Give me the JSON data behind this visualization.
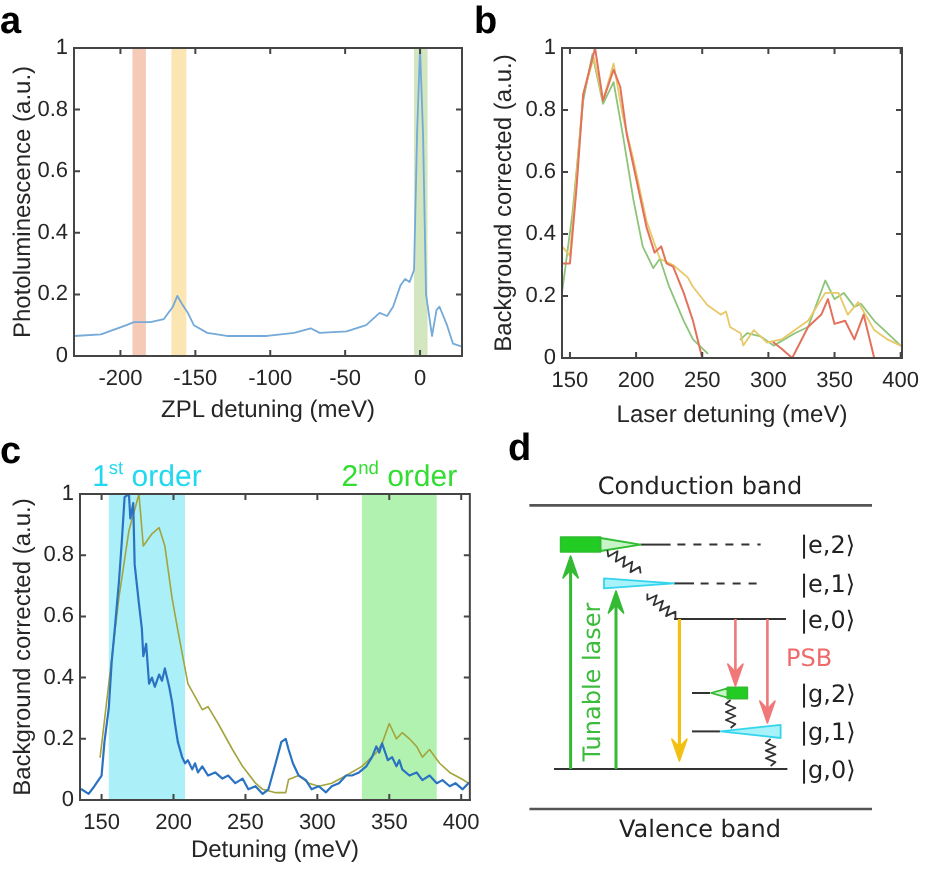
{
  "chart_data": [
    {
      "type": "line",
      "title": "a",
      "xlabel": "ZPL detuning (meV)",
      "ylabel": "Photoluminescence (a.u.)",
      "x": [
        -231,
        -213,
        -196,
        -191,
        -180,
        -171,
        -165,
        -162,
        -159,
        -155,
        -151,
        -142,
        -129,
        -102,
        -84,
        -73,
        -67,
        -49,
        -36,
        -27,
        -22,
        -18,
        -13,
        -10,
        -7,
        -4,
        -2,
        0,
        2,
        4,
        8,
        11,
        13,
        18,
        22,
        28
      ],
      "series": [
        {
          "color": "#74a9d8",
          "values": [
            0.065,
            0.07,
            0.1,
            0.11,
            0.11,
            0.12,
            0.16,
            0.195,
            0.17,
            0.14,
            0.1,
            0.075,
            0.065,
            0.065,
            0.075,
            0.09,
            0.075,
            0.08,
            0.1,
            0.14,
            0.13,
            0.16,
            0.23,
            0.25,
            0.24,
            0.28,
            0.72,
            1,
            0.72,
            0.2,
            0.065,
            0.15,
            0.16,
            0.1,
            0.04,
            0.03
          ]
        }
      ],
      "xlim": [
        -231,
        28
      ],
      "xticks": [
        -200,
        -150,
        -100,
        -50,
        0
      ],
      "ylim": [
        0,
        1
      ],
      "yticks": [
        0,
        0.2,
        0.4,
        0.6,
        0.8,
        1
      ],
      "bands": [
        {
          "axis": "x",
          "from": -192,
          "to": -183,
          "color": "#e57644"
        },
        {
          "axis": "x",
          "from": -166,
          "to": -156,
          "color": "#f5bb37"
        },
        {
          "axis": "x",
          "from": -4,
          "to": 5,
          "color": "#89bd57"
        }
      ]
    },
    {
      "type": "line",
      "title": "b",
      "xlabel": "Laser detuning (meV)",
      "ylabel": "Background corrected (a.u.)",
      "series": [
        {
          "color": "#e2725b",
          "x": [
            144,
            150,
            155,
            160,
            169,
            175,
            183,
            188,
            193,
            198,
            208,
            214,
            219,
            223,
            228,
            236,
            243,
            250,
            280,
            304,
            310,
            318,
            330,
            340,
            345,
            350,
            358,
            365,
            372,
            380
          ],
          "values": [
            0.305,
            0.305,
            0.55,
            0.85,
            1,
            0.83,
            0.93,
            0.875,
            0.72,
            0.62,
            0.42,
            0.34,
            0.36,
            0.305,
            0.295,
            0.21,
            0.12,
            0,
            null,
            0.05,
            0.03,
            0,
            0.1,
            0.14,
            0.19,
            0.11,
            0.12,
            0.06,
            0.14,
            0
          ]
        },
        {
          "color": "#e8c868",
          "x": [
            144,
            150,
            160,
            168,
            175,
            183,
            190,
            198,
            208,
            218,
            228,
            239,
            243,
            254,
            264,
            268,
            271,
            279,
            281,
            289,
            299,
            310,
            320,
            330,
            343,
            353,
            360,
            368,
            380,
            390,
            400
          ],
          "values": [
            0.36,
            0.33,
            0.85,
            0.97,
            0.83,
            0.95,
            0.78,
            0.64,
            0.44,
            0.32,
            0.3,
            0.26,
            0.23,
            0.17,
            0.14,
            0.15,
            0.1,
            0.08,
            0.04,
            0.09,
            0.05,
            0.06,
            0.09,
            0.12,
            0.21,
            0.21,
            0.14,
            0.18,
            0.09,
            0.06,
            0.04
          ]
        },
        {
          "color": "#8cc47a",
          "x": [
            144,
            152,
            160,
            167,
            175,
            183,
            190,
            198,
            205,
            213,
            218,
            225,
            236,
            243,
            254,
            265,
            279,
            284,
            294,
            304,
            320,
            330,
            343,
            350,
            357,
            365,
            370,
            380,
            390,
            400
          ],
          "values": [
            0.21,
            0.47,
            0.83,
            0.98,
            0.82,
            0.89,
            0.72,
            0.51,
            0.36,
            0.29,
            0.32,
            0.23,
            0.12,
            0.06,
            0.015,
            null,
            0.06,
            0.08,
            0.07,
            0.04,
            0.08,
            0.1,
            0.25,
            0.19,
            0.21,
            0.165,
            0.175,
            0.12,
            0.08,
            0.04
          ]
        }
      ],
      "xlim": [
        144,
        401
      ],
      "xticks": [
        150,
        200,
        250,
        300,
        350,
        400
      ],
      "ylim": [
        0,
        1
      ],
      "yticks": [
        0,
        0.2,
        0.4,
        0.6,
        0.8,
        1
      ]
    },
    {
      "type": "line",
      "title": "c",
      "xlabel": "Detuning (meV)",
      "ylabel": "Background corrected (a.u.)",
      "series": [
        {
          "color": "#2b73c2",
          "x": [
            136,
            141,
            145,
            150,
            152,
            155,
            157,
            159,
            162,
            164,
            166,
            169,
            170,
            172,
            173,
            176,
            178,
            179,
            181,
            183,
            185,
            187,
            190,
            192,
            194,
            197,
            199,
            201,
            203,
            206,
            208,
            210,
            213,
            215,
            217,
            220,
            224,
            229,
            234,
            238,
            243,
            248,
            252,
            257,
            262,
            266,
            271,
            275,
            278,
            280,
            283,
            287,
            292,
            296,
            301,
            306,
            310,
            315,
            320,
            324,
            329,
            334,
            338,
            341,
            343,
            345,
            349,
            352,
            355,
            357,
            359,
            364,
            369,
            373,
            378,
            383,
            387,
            392,
            396,
            401,
            405
          ],
          "values": [
            0.035,
            0.02,
            0.045,
            0.08,
            0.19,
            0.3,
            0.45,
            0.55,
            0.71,
            0.84,
            0.99,
            1,
            0.92,
            0.97,
            0.77,
            0.64,
            0.56,
            0.47,
            0.51,
            0.38,
            0.4,
            0.37,
            0.41,
            0.39,
            0.43,
            0.37,
            0.32,
            0.25,
            0.19,
            0.14,
            0.12,
            0.13,
            0.1,
            0.12,
            0.09,
            0.11,
            0.08,
            0.09,
            0.07,
            0.08,
            0.055,
            0.07,
            0.035,
            0.045,
            0.02,
            0.035,
            0.12,
            0.19,
            0.2,
            0.165,
            0.12,
            0.08,
            0.065,
            0.035,
            0.045,
            0.025,
            0.045,
            0.055,
            0.08,
            0.08,
            0.09,
            0.11,
            0.14,
            0.175,
            0.155,
            0.185,
            0.13,
            0.14,
            0.11,
            0.13,
            0.1,
            0.08,
            0.09,
            0.065,
            0.08,
            0.055,
            0.065,
            0.045,
            0.055,
            0.035,
            0.055
          ]
        },
        {
          "color": "#a3a43c",
          "x": [
            149,
            155,
            162,
            169,
            176,
            179,
            185,
            190,
            194,
            199,
            203,
            210,
            220,
            224,
            231,
            241,
            248,
            257,
            262,
            271,
            278,
            280,
            287,
            294,
            301,
            310,
            320,
            331,
            341,
            345,
            350,
            355,
            359,
            364,
            369,
            373,
            378,
            385,
            392,
            401,
            405
          ],
          "values": [
            0.14,
            0.38,
            0.66,
            0.88,
            1,
            0.83,
            0.87,
            0.89,
            0.83,
            0.66,
            0.555,
            0.38,
            0.295,
            0.305,
            0.25,
            0.165,
            0.11,
            0.055,
            0.035,
            0.024,
            0.024,
            0.067,
            0.08,
            0.055,
            0.045,
            0.055,
            0.08,
            0.11,
            0.155,
            0.185,
            0.25,
            0.2,
            0.22,
            0.2,
            0.175,
            0.14,
            0.165,
            0.12,
            0.09,
            0.067,
            0.055
          ]
        }
      ],
      "xlim": [
        135,
        406
      ],
      "xticks": [
        150,
        200,
        250,
        300,
        350,
        400
      ],
      "ylim": [
        0,
        1
      ],
      "yticks": [
        0,
        0.2,
        0.4,
        0.6,
        0.8,
        1
      ],
      "bands": [
        {
          "axis": "x",
          "from": 155,
          "to": 208,
          "label": "1$^{st}$ order",
          "color": "#22d8ee"
        },
        {
          "axis": "x",
          "from": 331,
          "to": 383,
          "label": "2$^{nd}$ order",
          "color": "#33dd33"
        }
      ]
    },
    {
      "type": "other",
      "title": "d",
      "annotations": [
        "Conduction band",
        "|e,2⟩",
        "|e,1⟩",
        "|e,0⟩",
        "PSB",
        "|g,2⟩",
        "|g,1⟩",
        "|g,0⟩",
        "Tunable laser",
        "Valence band"
      ]
    }
  ]
}
